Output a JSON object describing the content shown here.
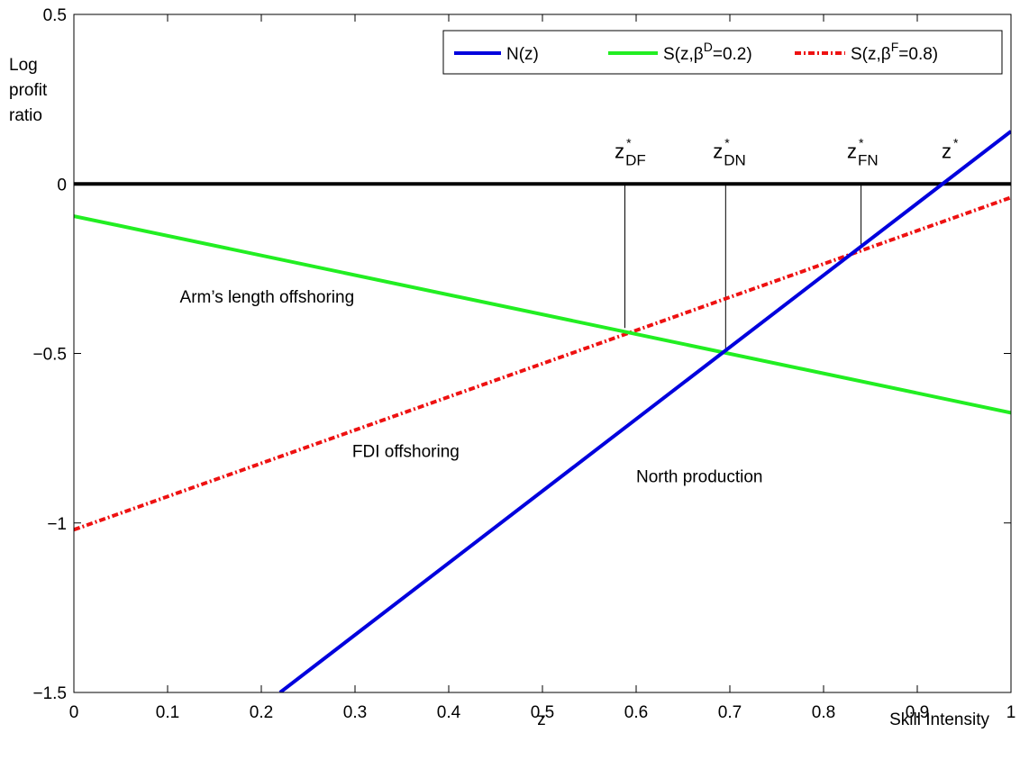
{
  "chart_data": {
    "type": "line",
    "xlabel": "z",
    "xlabel_right": "Skill Intensity",
    "ylabel_lines": [
      "Log",
      "profit",
      "ratio"
    ],
    "xlim": [
      0,
      1
    ],
    "ylim": [
      -1.5,
      0.5
    ],
    "x_ticks": [
      0,
      0.1,
      0.2,
      0.3,
      0.4,
      0.5,
      0.6,
      0.7,
      0.8,
      0.9,
      1
    ],
    "x_tick_labels": [
      "0",
      "0.1",
      "0.2",
      "0.3",
      "0.4",
      "0.5",
      "0.6",
      "0.7",
      "0.8",
      "0.9",
      "1"
    ],
    "y_ticks": [
      -1.5,
      -1,
      -0.5,
      0,
      0.5
    ],
    "y_tick_labels": [
      "−1.5",
      "−1",
      "−0.5",
      "0",
      "0.5"
    ],
    "grid": false,
    "legend_position": "top-right",
    "series": [
      {
        "name": "N(z)",
        "legend_base": "N(z)",
        "color": "#0000dd",
        "dash": "solid",
        "x": [
          0.22,
          1.0
        ],
        "y": [
          -1.5,
          0.155
        ]
      },
      {
        "name": "S(z,βD=0.2)",
        "legend_base": "S(z,β",
        "legend_sup": "D",
        "legend_tail": "=0.2)",
        "color": "#22ee22",
        "dash": "solid",
        "x": [
          0,
          1
        ],
        "y": [
          -0.095,
          -0.675
        ]
      },
      {
        "name": "S(z,βF=0.8)",
        "legend_base": "S(z,β",
        "legend_sup": "F",
        "legend_tail": "=0.8)",
        "color": "#ee1111",
        "dash": "dashdot",
        "x": [
          0,
          1
        ],
        "y": [
          -1.02,
          -0.04
        ]
      }
    ],
    "zero_line": {
      "y": 0,
      "color": "#000000"
    },
    "drop_lines": [
      {
        "x": 0.588,
        "y_from": -0.425,
        "y_to": 0
      },
      {
        "x": 0.6955,
        "y_from": -0.49,
        "y_to": 0
      },
      {
        "x": 0.84,
        "y_from": -0.185,
        "y_to": 0
      }
    ],
    "cutoff_labels": [
      {
        "base": "z",
        "sup": "*",
        "sub": "DF",
        "x": 0.577,
        "y": 0.045
      },
      {
        "base": "z",
        "sup": "*",
        "sub": "DN",
        "x": 0.682,
        "y": 0.045
      },
      {
        "base": "z",
        "sup": "*",
        "sub": "FN",
        "x": 0.825,
        "y": 0.045
      },
      {
        "base": "z",
        "sup": "*",
        "sub": "",
        "x": 0.926,
        "y": 0.045
      }
    ],
    "annotations": [
      {
        "text": "Arm’s length offshoring",
        "x": 0.113,
        "y": -0.35
      },
      {
        "text": "FDI offshoring",
        "x": 0.297,
        "y": -0.805
      },
      {
        "text": "North production",
        "x": 0.6,
        "y": -0.88
      }
    ]
  }
}
